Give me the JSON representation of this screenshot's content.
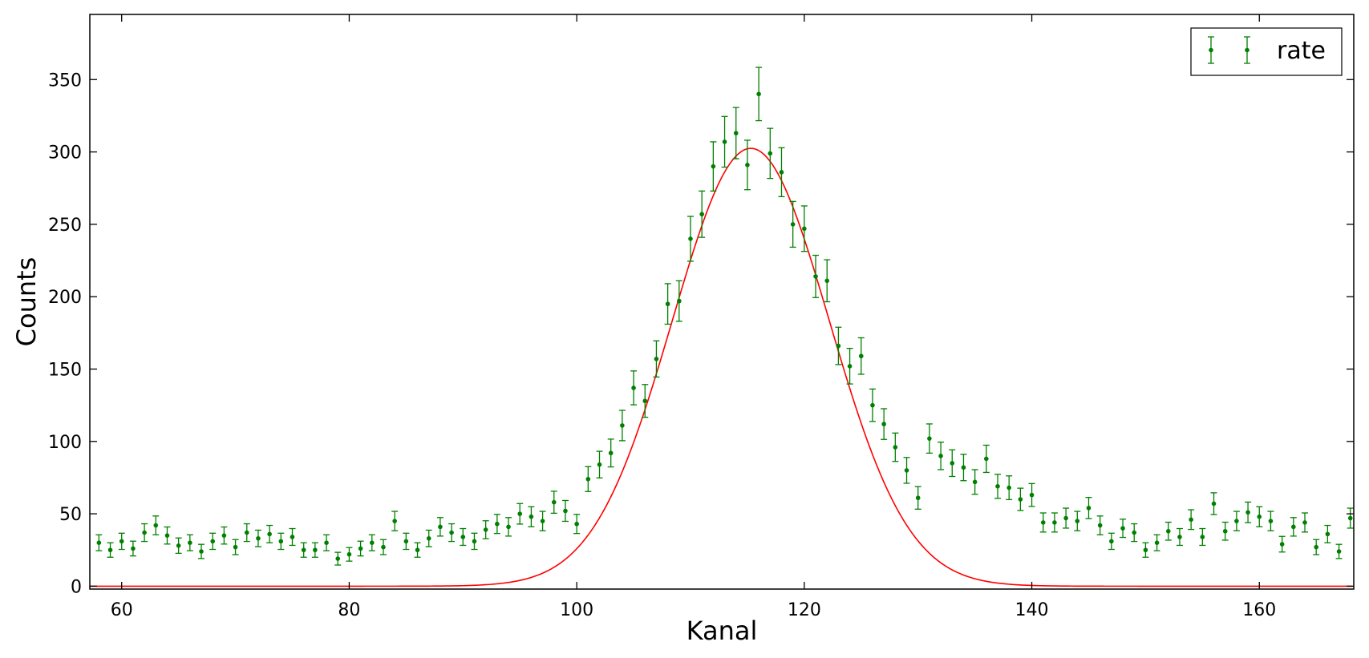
{
  "chart_data": {
    "type": "scatter",
    "xlabel": "Kanal",
    "ylabel": "Counts",
    "xlim": [
      57.2,
      168.3
    ],
    "ylim": [
      -2,
      395
    ],
    "xticks": [
      60,
      80,
      100,
      120,
      140,
      160
    ],
    "yticks": [
      0,
      50,
      100,
      150,
      200,
      250,
      300,
      350
    ],
    "grid": false,
    "legend": {
      "position": "top-right",
      "entries": [
        "rate"
      ]
    },
    "colors": {
      "points": "#008000",
      "fit": "#ff0000"
    },
    "series": [
      {
        "name": "rate",
        "style": "errorbar",
        "x": [
          58,
          59,
          60,
          61,
          62,
          63,
          64,
          65,
          66,
          67,
          68,
          69,
          70,
          71,
          72,
          73,
          74,
          75,
          76,
          77,
          78,
          79,
          80,
          81,
          82,
          83,
          84,
          85,
          86,
          87,
          88,
          89,
          90,
          91,
          92,
          93,
          94,
          95,
          96,
          97,
          98,
          99,
          100,
          101,
          102,
          103,
          104,
          105,
          106,
          107,
          108,
          109,
          110,
          111,
          112,
          113,
          114,
          115,
          116,
          117,
          118,
          119,
          120,
          121,
          122,
          123,
          124,
          125,
          126,
          127,
          128,
          129,
          130,
          131,
          132,
          133,
          134,
          135,
          136,
          137,
          138,
          139,
          140,
          141,
          142,
          143,
          144,
          145,
          146,
          147,
          148,
          149,
          150,
          151,
          152,
          153,
          154,
          155,
          156,
          157,
          158,
          159,
          160,
          161,
          162,
          163,
          164,
          165,
          166,
          167,
          168
        ],
        "y": [
          30,
          25,
          31,
          26,
          37,
          42,
          35,
          28,
          30,
          24,
          31,
          35,
          27,
          37,
          33,
          36,
          31,
          34,
          25,
          25,
          30,
          19,
          22,
          26,
          30,
          27,
          45,
          31,
          25,
          33,
          41,
          37,
          34,
          31,
          39,
          43,
          41,
          50,
          48,
          45,
          58,
          52,
          43,
          74,
          84,
          92,
          111,
          137,
          128,
          157,
          195,
          197,
          240,
          257,
          290,
          307,
          313,
          291,
          340,
          299,
          286,
          250,
          247,
          214,
          211,
          166,
          152,
          159,
          125,
          112,
          96,
          80,
          61,
          102,
          90,
          85,
          82,
          72,
          88,
          69,
          68,
          60,
          63,
          44,
          44,
          47,
          45,
          54,
          42,
          31,
          40,
          37,
          25,
          30,
          38,
          34,
          46,
          34,
          57,
          38,
          45,
          51,
          48,
          45,
          29,
          41,
          44,
          27,
          36,
          24,
          47
        ],
        "yerr": [
          5.5,
          5.0,
          5.6,
          5.1,
          6.1,
          6.5,
          5.9,
          5.3,
          5.5,
          4.9,
          5.6,
          5.9,
          5.2,
          6.1,
          5.7,
          6.0,
          5.6,
          5.8,
          5.0,
          5.0,
          5.5,
          4.4,
          4.7,
          5.1,
          5.5,
          5.2,
          6.7,
          5.6,
          5.0,
          5.7,
          6.4,
          6.1,
          5.8,
          5.6,
          6.2,
          6.6,
          6.4,
          7.1,
          6.9,
          6.7,
          7.6,
          7.2,
          6.6,
          8.6,
          9.2,
          9.6,
          10.5,
          11.7,
          11.3,
          12.5,
          14.0,
          14.0,
          15.5,
          16.0,
          17.0,
          17.5,
          17.7,
          17.1,
          18.4,
          17.3,
          16.9,
          15.8,
          15.7,
          14.6,
          14.5,
          12.9,
          12.3,
          12.6,
          11.2,
          10.6,
          9.8,
          8.9,
          7.8,
          10.1,
          9.5,
          9.2,
          9.1,
          8.5,
          9.4,
          8.3,
          8.2,
          7.7,
          7.9,
          6.6,
          6.6,
          6.9,
          6.7,
          7.3,
          6.5,
          5.6,
          6.3,
          6.1,
          5.0,
          5.5,
          6.2,
          5.8,
          6.8,
          5.8,
          7.5,
          6.2,
          6.7,
          7.1,
          6.9,
          6.7,
          5.4,
          6.4,
          6.6,
          5.2,
          6.0,
          4.9,
          6.9
        ]
      },
      {
        "style": "line",
        "fit": {
          "function": "gaussian",
          "amplitude": 302.5,
          "mean": 115.3,
          "sigma": 6.9
        }
      }
    ]
  }
}
